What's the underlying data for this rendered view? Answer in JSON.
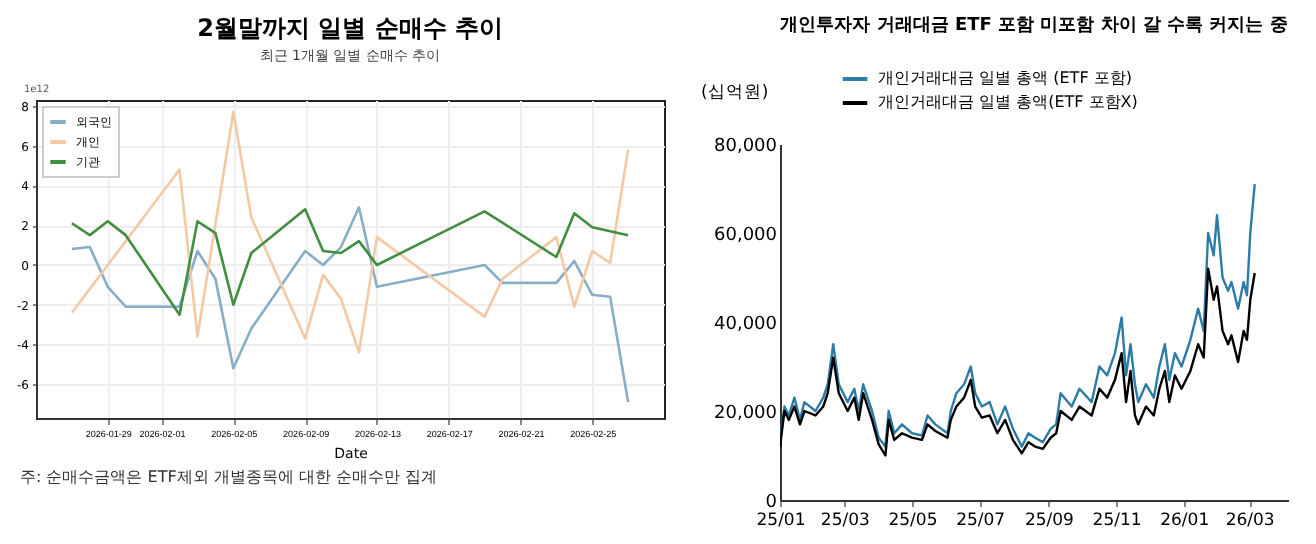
{
  "chart_data": [
    {
      "type": "line",
      "title": "2월말까지 일별 순매수 추이",
      "subtitle": "최근 1개월 일별 순매수 추이",
      "xlabel": "Date",
      "annotations": [
        "1e12",
        "주: 순매수금액은 ETF제외 개별종목에 대한 순매수만 집계"
      ],
      "xlim": [
        "2026-01-25",
        "2026-03-01"
      ],
      "xticks": [
        "2026-01-29",
        "2026-02-01",
        "2026-02-05",
        "2026-02-09",
        "2026-02-13",
        "2026-02-17",
        "2026-02-21",
        "2026-02-25"
      ],
      "ylim": [
        -7.7,
        8.3
      ],
      "yticks": [
        -6,
        -4,
        -2,
        0,
        2,
        4,
        6,
        8
      ],
      "grid": true,
      "legend": "top left",
      "series": [
        {
          "name": "외국인",
          "color": "#86aec6",
          "x": [
            "2026-01-27",
            "2026-01-28",
            "2026-01-29",
            "2026-01-30",
            "2026-02-02",
            "2026-02-03",
            "2026-02-04",
            "2026-02-05",
            "2026-02-06",
            "2026-02-09",
            "2026-02-10",
            "2026-02-11",
            "2026-02-12",
            "2026-02-13",
            "2026-02-19",
            "2026-02-20",
            "2026-02-23",
            "2026-02-24",
            "2026-02-25",
            "2026-02-26",
            "2026-02-27"
          ],
          "values": [
            0.8,
            0.9,
            -1.1,
            -2.1,
            -2.1,
            0.7,
            -0.7,
            -5.2,
            -3.2,
            0.7,
            0,
            0.9,
            2.9,
            -1.1,
            0,
            -0.9,
            -0.9,
            0.2,
            -1.5,
            -1.6,
            -6.9
          ]
        },
        {
          "name": "개인",
          "color": "#f3c9a3",
          "x": [
            "2026-01-27",
            "2026-02-02",
            "2026-02-03",
            "2026-02-05",
            "2026-02-06",
            "2026-02-09",
            "2026-02-10",
            "2026-02-11",
            "2026-02-12",
            "2026-02-13",
            "2026-02-19",
            "2026-02-20",
            "2026-02-23",
            "2026-02-24",
            "2026-02-25",
            "2026-02-26",
            "2026-02-27"
          ],
          "values": [
            -2.4,
            4.8,
            -3.6,
            7.7,
            2.4,
            -3.7,
            -0.5,
            -1.7,
            -4.4,
            1.4,
            -2.6,
            -0.7,
            1.4,
            -2.1,
            0.7,
            0.1,
            5.8
          ]
        },
        {
          "name": "기관",
          "color": "#3f8f3f",
          "x": [
            "2026-01-27",
            "2026-01-28",
            "2026-01-29",
            "2026-01-30",
            "2026-02-02",
            "2026-02-03",
            "2026-02-04",
            "2026-02-05",
            "2026-02-06",
            "2026-02-09",
            "2026-02-10",
            "2026-02-11",
            "2026-02-12",
            "2026-02-13",
            "2026-02-19",
            "2026-02-23",
            "2026-02-24",
            "2026-02-25",
            "2026-02-27"
          ],
          "values": [
            2.1,
            1.5,
            2.2,
            1.5,
            -2.5,
            2.2,
            1.6,
            -2,
            0.6,
            2.8,
            0.7,
            0.6,
            1.2,
            0,
            2.7,
            0.4,
            2.6,
            1.9,
            1.5
          ]
        }
      ]
    },
    {
      "type": "line",
      "title": "개인투자자 거래대금 ETF 포함 미포함 차이 갈 수록 커지는 중",
      "ylabel": "(십억원)",
      "x": [
        "2025-01-02",
        "2025-01-06",
        "2025-01-10",
        "2025-01-15",
        "2025-01-20",
        "2025-01-24",
        "2025-02-03",
        "2025-02-10",
        "2025-02-14",
        "2025-02-19",
        "2025-02-24",
        "2025-03-04",
        "2025-03-10",
        "2025-03-14",
        "2025-03-18",
        "2025-03-26",
        "2025-04-01",
        "2025-04-07",
        "2025-04-10",
        "2025-04-15",
        "2025-04-22",
        "2025-05-01",
        "2025-05-10",
        "2025-05-15",
        "2025-05-22",
        "2025-06-02",
        "2025-06-05",
        "2025-06-10",
        "2025-06-17",
        "2025-06-23",
        "2025-06-27",
        "2025-07-03",
        "2025-07-10",
        "2025-07-17",
        "2025-07-24",
        "2025-07-31",
        "2025-08-08",
        "2025-08-14",
        "2025-08-20",
        "2025-08-27",
        "2025-09-03",
        "2025-09-08",
        "2025-09-12",
        "2025-09-22",
        "2025-09-29",
        "2025-10-10",
        "2025-10-17",
        "2025-10-24",
        "2025-10-31",
        "2025-11-06",
        "2025-11-10",
        "2025-11-14",
        "2025-11-18",
        "2025-11-21",
        "2025-11-28",
        "2025-12-05",
        "2025-12-10",
        "2025-12-15",
        "2025-12-19",
        "2025-12-24",
        "2025-12-30",
        "2026-01-07",
        "2026-01-14",
        "2026-01-19",
        "2026-01-23",
        "2026-01-28",
        "2026-01-31",
        "2026-02-05",
        "2026-02-10",
        "2026-02-13",
        "2026-02-19",
        "2026-02-24",
        "2026-02-27",
        "2026-03-02",
        "2026-03-06"
      ],
      "ylim": [
        0,
        80000
      ],
      "yticks": [
        0,
        {
          "value": 20000,
          "label": "20,000"
        },
        {
          "value": 40000,
          "label": "40,000"
        },
        {
          "value": 60000,
          "label": "60,000"
        },
        {
          "value": 80000,
          "label": "80,000"
        }
      ],
      "xlim": [
        "2025-01-02",
        "2026-04-05"
      ],
      "xticks": [
        {
          "value": "2025-01-02",
          "label": "25/01"
        },
        {
          "value": "2025-03-01",
          "label": "25/03"
        },
        {
          "value": "2025-05-01",
          "label": "25/05"
        },
        {
          "value": "2025-07-01",
          "label": "25/07"
        },
        {
          "value": "2025-09-01",
          "label": "25/09"
        },
        {
          "value": "2025-11-01",
          "label": "25/11"
        },
        {
          "value": "2026-01-01",
          "label": "26/01"
        },
        {
          "value": "2026-03-01",
          "label": "26/03"
        }
      ],
      "legend": "top",
      "series": [
        {
          "name": "개인거래대금 일별 총액 (ETF 포함)",
          "color": "#2b7ca6",
          "values": [
            13000,
            21000,
            19000,
            23000,
            18000,
            22000,
            20000,
            23000,
            26000,
            35000,
            26000,
            22000,
            25000,
            20000,
            26000,
            20000,
            14000,
            12000,
            20000,
            15000,
            17000,
            15000,
            14500,
            19000,
            17000,
            15000,
            20000,
            24000,
            26000,
            30000,
            24000,
            21000,
            22000,
            17000,
            21000,
            16000,
            12000,
            15000,
            14000,
            13000,
            16000,
            17000,
            24000,
            21000,
            25000,
            22000,
            30000,
            28000,
            33000,
            41000,
            28000,
            35000,
            26000,
            22000,
            26000,
            23000,
            30000,
            35000,
            27000,
            33000,
            30000,
            36000,
            43000,
            38000,
            60000,
            55000,
            64000,
            50000,
            47000,
            49000,
            43000,
            49000,
            46000,
            60000,
            71000
          ]
        },
        {
          "name": "개인거래대금 일별 총액(ETF 포함X)",
          "color": "#000000",
          "values": [
            12000,
            20000,
            18000,
            21000,
            17000,
            20000,
            19000,
            21000,
            24000,
            32000,
            24000,
            20000,
            23000,
            18000,
            24000,
            18000,
            12500,
            10000,
            18000,
            13500,
            15000,
            14000,
            13500,
            17000,
            15500,
            14000,
            18000,
            21000,
            23000,
            27000,
            21000,
            18500,
            19000,
            15000,
            18000,
            13500,
            10500,
            13000,
            12000,
            11500,
            14000,
            15000,
            20000,
            18000,
            21000,
            19000,
            25000,
            23000,
            27000,
            33000,
            22000,
            29000,
            19000,
            17000,
            21000,
            19000,
            25000,
            29000,
            22000,
            28000,
            25000,
            29000,
            35000,
            32000,
            52000,
            45000,
            48000,
            38000,
            35000,
            37000,
            31000,
            38000,
            36000,
            45000,
            51000
          ]
        }
      ]
    }
  ]
}
